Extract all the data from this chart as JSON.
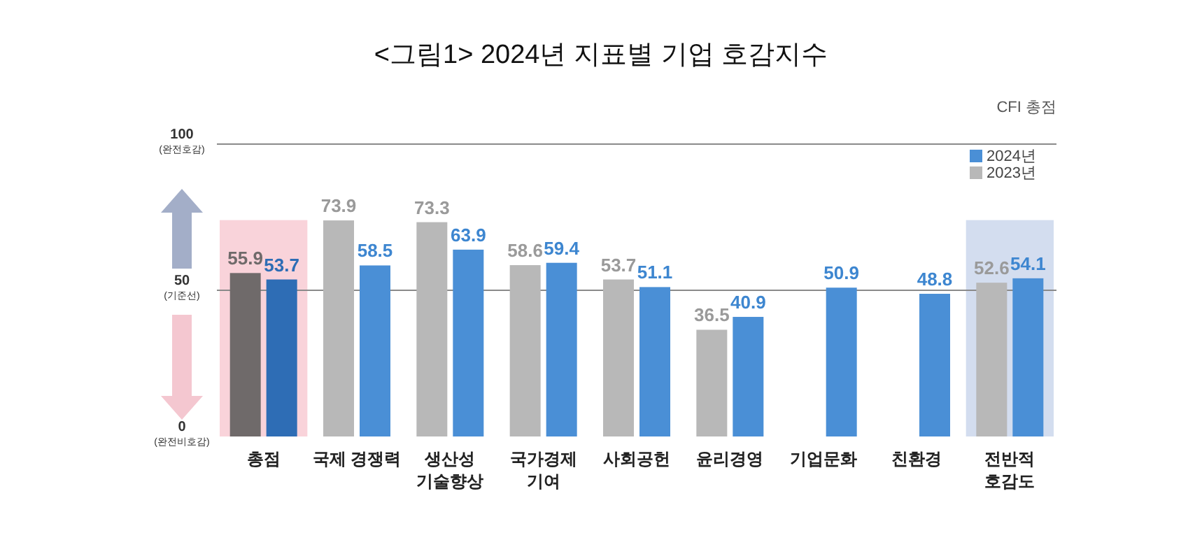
{
  "chart_data": {
    "type": "bar",
    "title": "<그림1> 2024년 지표별 기업 호감지수",
    "categories": [
      "총점",
      "국제 경쟁력",
      "생산성\n기술향상",
      "국가경제\n기여",
      "사회공헌",
      "윤리경영",
      "기업문화",
      "친환경",
      "전반적\n호감도"
    ],
    "series": [
      {
        "name": "2023년",
        "color": "#b8b8b8",
        "colors": [
          "#6f6a6a",
          "#b8b8b8",
          "#b8b8b8",
          "#b8b8b8",
          "#b8b8b8",
          "#b8b8b8",
          null,
          null,
          "#b8b8b8"
        ],
        "values": [
          55.9,
          73.9,
          73.3,
          58.6,
          53.7,
          36.5,
          null,
          null,
          52.6
        ]
      },
      {
        "name": "2024년",
        "color": "#4a8fd6",
        "colors": [
          "#2e6db5",
          "#4a8fd6",
          "#4a8fd6",
          "#4a8fd6",
          "#4a8fd6",
          "#4a8fd6",
          "#4a8fd6",
          "#4a8fd6",
          "#4a8fd6"
        ],
        "values": [
          53.7,
          58.5,
          63.9,
          59.4,
          51.1,
          40.9,
          50.9,
          48.8,
          54.1
        ]
      }
    ],
    "ylim": [
      0,
      100
    ],
    "yticks": [
      {
        "value": 0,
        "label": "0\n(완전비호감)"
      },
      {
        "value": 50,
        "label": "50\n(기준선)"
      },
      {
        "value": 100,
        "label": "100\n(완전호감)"
      }
    ],
    "grid": "y",
    "legend": "top right",
    "data_labels": true,
    "bands": [
      {
        "axis": "x",
        "from": "총점",
        "to": "총점",
        "color": "#f9d3da"
      },
      {
        "axis": "x",
        "from": "전반적\n호감도",
        "to": "전반적\n호감도",
        "color": "#d3ddef"
      }
    ],
    "annotations": [
      "CFI 총점"
    ]
  }
}
